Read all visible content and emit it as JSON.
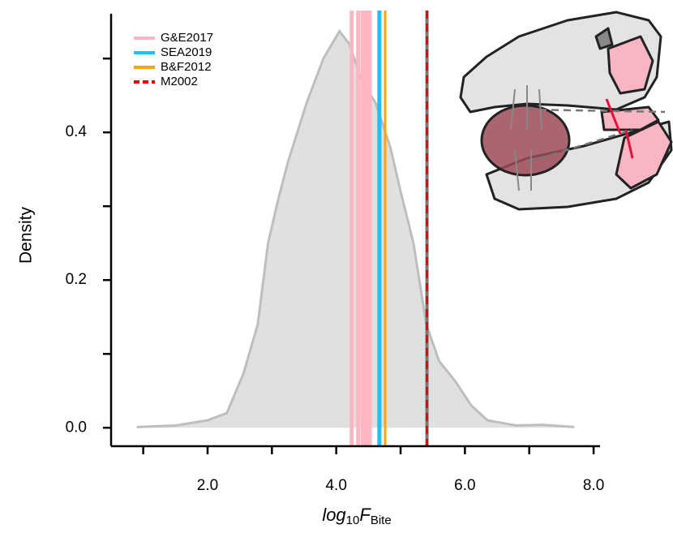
{
  "chart_data": {
    "type": "density",
    "y_label": "Density",
    "x_label": {
      "base": "log",
      "base_sub": "10",
      "var": "F",
      "var_sub": "Bite"
    },
    "xlim": [
      0.5,
      8.1
    ],
    "ylim": [
      -0.025,
      0.565
    ],
    "xticks": [
      {
        "value": 2,
        "label": "2.0"
      },
      {
        "value": 4,
        "label": "4.0"
      },
      {
        "value": 6,
        "label": "6.0"
      },
      {
        "value": 8,
        "label": "8.0"
      }
    ],
    "xminor_ticks": [
      1,
      3,
      5,
      7
    ],
    "yticks": [
      {
        "value": 0,
        "label": "0.0"
      },
      {
        "value": 0.2,
        "label": "0.2"
      },
      {
        "value": 0.4,
        "label": "0.4"
      }
    ],
    "yminor_ticks": [
      0.1,
      0.3,
      0.5
    ],
    "grid": false,
    "legend": "top-left",
    "density": {
      "color": "#bebebe",
      "fill": "#e0e0e0",
      "x": [
        0.9,
        1.5,
        2.0,
        2.3,
        2.56,
        2.78,
        2.94,
        3.1,
        3.25,
        3.54,
        3.8,
        4.05,
        4.2,
        4.4,
        4.61,
        4.84,
        5.0,
        5.2,
        5.4,
        5.6,
        5.85,
        6.1,
        6.35,
        6.8,
        7.2,
        7.7
      ],
      "values": [
        0.001,
        0.003,
        0.01,
        0.02,
        0.074,
        0.14,
        0.25,
        0.31,
        0.36,
        0.44,
        0.5,
        0.537,
        0.52,
        0.47,
        0.44,
        0.38,
        0.32,
        0.25,
        0.14,
        0.09,
        0.063,
        0.03,
        0.01,
        0.003,
        0.004,
        0.001
      ]
    },
    "reference_lines": [
      {
        "name": "G&E2017",
        "color": "#ffb6c1",
        "width": 5,
        "dashed": false,
        "x": [
          4.24,
          4.34,
          4.41,
          4.47,
          4.52
        ]
      },
      {
        "name": "SEA2019",
        "color": "#1ebeff",
        "width": 5,
        "dashed": false,
        "x": [
          4.67
        ]
      },
      {
        "name": "B&F2012",
        "color": "#ffa500",
        "width": 3,
        "dashed": false,
        "x": [
          4.76
        ]
      },
      {
        "name": "M2002",
        "color": "#ee0000",
        "width": 3,
        "dashed": true,
        "x": [
          5.41
        ]
      }
    ]
  }
}
